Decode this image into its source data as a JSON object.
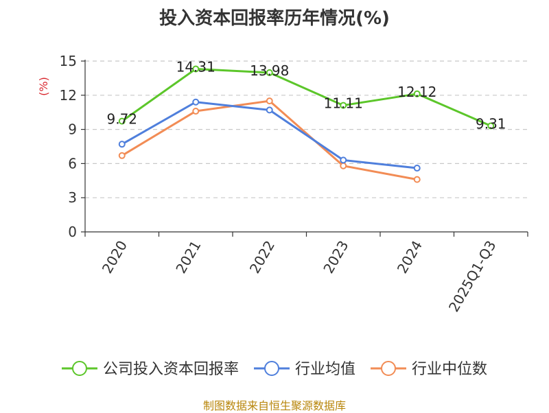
{
  "title": "投入资本回报率历年情况(%)",
  "source": "制图数据来自恒生聚源数据库",
  "chart_data": {
    "type": "line",
    "title": "投入资本回报率历年情况(%)",
    "ylabel": "(%)",
    "xlabel": "",
    "categories": [
      "2020",
      "2021",
      "2022",
      "2023",
      "2024",
      "2025Q1-Q3"
    ],
    "ylim": [
      0,
      15
    ],
    "yticks": [
      0,
      3,
      6,
      9,
      12,
      15
    ],
    "grid": "horizontal dashed",
    "legend_position": "bottom",
    "series": [
      {
        "name": "公司投入资本回报率",
        "color": "#5cc62a",
        "values": [
          9.72,
          14.31,
          13.98,
          11.11,
          12.12,
          9.31
        ],
        "labels": [
          "9.72",
          "14.31",
          "13.98",
          "11.11",
          "12.12",
          "9.31"
        ]
      },
      {
        "name": "行业均值",
        "color": "#4f7fdc",
        "values": [
          7.7,
          11.4,
          10.7,
          6.3,
          5.6,
          null
        ]
      },
      {
        "name": "行业中位数",
        "color": "#f28c55",
        "values": [
          6.7,
          10.6,
          11.5,
          5.8,
          4.6,
          null
        ]
      }
    ]
  }
}
